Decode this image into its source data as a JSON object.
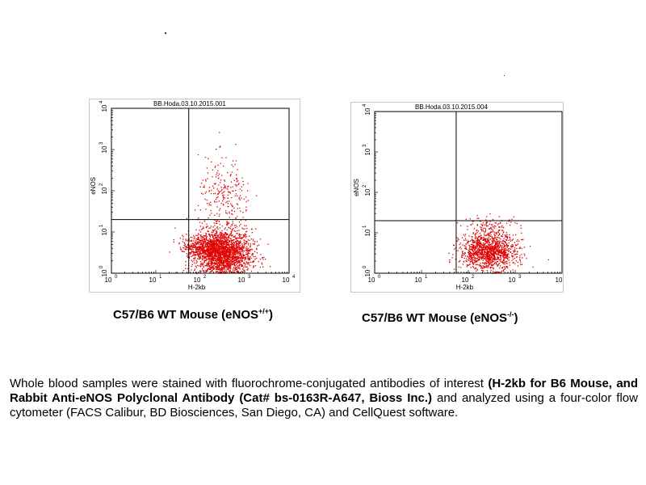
{
  "chart_data": [
    {
      "type": "scatter",
      "title": "BB.Hoda.03.10.2015.001",
      "xlabel": "H-2kb",
      "ylabel": "eNOS",
      "x_scale": "log",
      "y_scale": "log",
      "xlim": [
        1,
        10000
      ],
      "ylim": [
        1,
        10000
      ],
      "x_tick_labels": [
        "10",
        "10",
        "10",
        "10",
        "10"
      ],
      "x_tick_exponents": [
        "0",
        "1",
        "2",
        "3",
        "4"
      ],
      "y_tick_labels": [
        "10",
        "10",
        "10",
        "10",
        "10"
      ],
      "y_tick_exponents": [
        "0",
        "1",
        "2",
        "3",
        "4"
      ],
      "quadrant_gate": {
        "x": 55,
        "y": 20
      },
      "grid": false,
      "point_color": "#e00000",
      "series": [
        {
          "clusters": [
            {
              "x_center": 320,
              "y_center": 3,
              "x_spread_decades": 0.32,
              "y_spread_decades": 0.3,
              "count": 2200
            },
            {
              "x_center": 110,
              "y_center": 4.5,
              "x_spread_decades": 0.22,
              "y_spread_decades": 0.13,
              "count": 450
            },
            {
              "x_center": 350,
              "y_center": 60,
              "x_spread_decades": 0.3,
              "y_spread_decades": 0.5,
              "count": 260
            }
          ]
        }
      ]
    },
    {
      "type": "scatter",
      "title": "BB.Hoda.03.10.2015.004",
      "xlabel": "H-2kb",
      "ylabel": "eNOS",
      "x_scale": "log",
      "y_scale": "log",
      "xlim": [
        1,
        10000
      ],
      "ylim": [
        1,
        10000
      ],
      "x_tick_labels": [
        "10",
        "10",
        "10",
        "10",
        "10"
      ],
      "x_tick_exponents": [
        "0",
        "1",
        "2",
        "3",
        "4"
      ],
      "y_tick_labels": [
        "10",
        "10",
        "10",
        "10",
        "10"
      ],
      "y_tick_exponents": [
        "0",
        "1",
        "2",
        "3",
        "4"
      ],
      "quadrant_gate": {
        "x": 55,
        "y": 20
      },
      "grid": false,
      "point_color": "#e00000",
      "series": [
        {
          "clusters": [
            {
              "x_center": 260,
              "y_center": 3.5,
              "x_spread_decades": 0.3,
              "y_spread_decades": 0.22,
              "count": 1300
            },
            {
              "x_center": 300,
              "y_center": 14,
              "x_spread_decades": 0.3,
              "y_spread_decades": 0.15,
              "count": 120
            }
          ]
        }
      ]
    }
  ],
  "captions": [
    {
      "main": "C57/B6 WT Mouse (eNOS",
      "sup": "+/+",
      "close": ")"
    },
    {
      "main": "C57/B6 WT Mouse (eNOS",
      "sup": "-/-",
      "close": ")"
    }
  ],
  "description": {
    "part1": "Whole blood samples were stained with fluorochrome-conjugated antibodies of interest ",
    "bold": "(H-2kb for B6 Mouse, and Rabbit Anti-eNOS Polyclonal Antibody (Cat# bs-0163R-A647, Bioss Inc.)",
    "part2": " and analyzed using a four-color flow cytometer (FACS Calibur, BD Biosciences, San Diego, CA) and CellQuest software."
  }
}
